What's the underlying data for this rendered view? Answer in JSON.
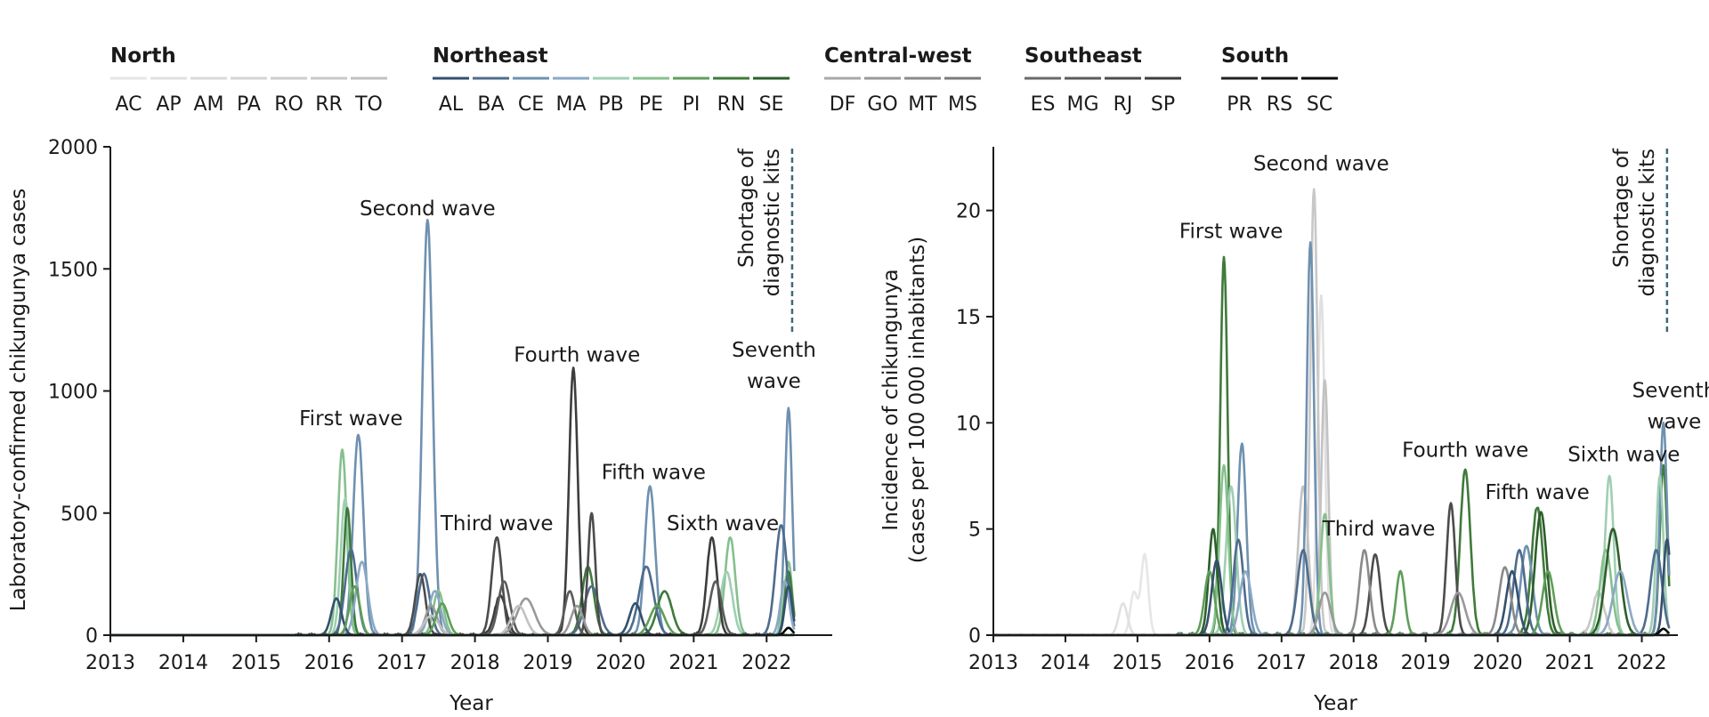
{
  "legend": {
    "regions": [
      {
        "name": "North",
        "states": [
          {
            "code": "AC",
            "color": "#e6e6e6"
          },
          {
            "code": "AP",
            "color": "#e0e0e0"
          },
          {
            "code": "AM",
            "color": "#dadada"
          },
          {
            "code": "PA",
            "color": "#d4d4d4"
          },
          {
            "code": "RO",
            "color": "#cecece"
          },
          {
            "code": "RR",
            "color": "#c8c8c8"
          },
          {
            "code": "TO",
            "color": "#c2c2c2"
          }
        ]
      },
      {
        "name": "Northeast",
        "states": [
          {
            "code": "AL",
            "color": "#34506e"
          },
          {
            "code": "BA",
            "color": "#4d6c8e"
          },
          {
            "code": "CE",
            "color": "#6f91b0"
          },
          {
            "code": "MA",
            "color": "#8aa9c4"
          },
          {
            "code": "PB",
            "color": "#9fcfb3"
          },
          {
            "code": "PE",
            "color": "#86c08e"
          },
          {
            "code": "PI",
            "color": "#5f9e5a"
          },
          {
            "code": "RN",
            "color": "#3f7a3a"
          },
          {
            "code": "SE",
            "color": "#2e5e2a"
          }
        ]
      },
      {
        "name": "Central-west",
        "states": [
          {
            "code": "DF",
            "color": "#a8a8a8"
          },
          {
            "code": "GO",
            "color": "#999999"
          },
          {
            "code": "MT",
            "color": "#8a8a8a"
          },
          {
            "code": "MS",
            "color": "#7b7b7b"
          }
        ]
      },
      {
        "name": "Southeast",
        "states": [
          {
            "code": "ES",
            "color": "#6a6a6a"
          },
          {
            "code": "MG",
            "color": "#5b5b5b"
          },
          {
            "code": "RJ",
            "color": "#4c4c4c"
          },
          {
            "code": "SP",
            "color": "#3d3d3d"
          }
        ]
      },
      {
        "name": "South",
        "states": [
          {
            "code": "PR",
            "color": "#222222"
          },
          {
            "code": "RS",
            "color": "#151515"
          },
          {
            "code": "SC",
            "color": "#080808"
          }
        ]
      }
    ]
  },
  "chart_data": [
    {
      "type": "line",
      "title": "",
      "xlabel": "Year",
      "ylabel": "Laboratory-confirmed chikungunya cases",
      "xlim": [
        2013,
        2022.9
      ],
      "ylim": [
        0,
        2000
      ],
      "x_ticks": [
        2013,
        2014,
        2015,
        2016,
        2017,
        2018,
        2019,
        2020,
        2021,
        2022
      ],
      "y_ticks": [
        0,
        500,
        1000,
        1500,
        2000
      ],
      "grid": false,
      "vline": {
        "x": 2022.35,
        "label": [
          "Shortage of",
          "diagnostic kits"
        ],
        "color": "#3e6a7a"
      },
      "annotations": [
        {
          "text": "First wave",
          "x": 2016.3,
          "y": 860
        },
        {
          "text": "Second wave",
          "x": 2017.35,
          "y": 1720
        },
        {
          "text": "Third wave",
          "x": 2018.3,
          "y": 430
        },
        {
          "text": "Fourth wave",
          "x": 2019.4,
          "y": 1120
        },
        {
          "text": "Fifth wave",
          "x": 2020.45,
          "y": 640
        },
        {
          "text": "Sixth wave",
          "x": 2021.4,
          "y": 430
        },
        {
          "text": [
            "Seventh",
            "wave"
          ],
          "x": 2022.1,
          "y": 1140
        }
      ],
      "series": [
        {
          "name": "CE",
          "color": "#6f91b0",
          "peaks": [
            [
              2016.4,
              820,
              0.07
            ],
            [
              2017.35,
              1700,
              0.07
            ],
            [
              2020.4,
              610,
              0.07
            ],
            [
              2022.3,
              930,
              0.05
            ]
          ]
        },
        {
          "name": "PE",
          "color": "#86c08e",
          "peaks": [
            [
              2016.18,
              760,
              0.06
            ],
            [
              2017.5,
              180,
              0.07
            ],
            [
              2021.5,
              400,
              0.07
            ],
            [
              2022.3,
              300,
              0.05
            ]
          ]
        },
        {
          "name": "PB",
          "color": "#9fcfb3",
          "peaks": [
            [
              2016.22,
              560,
              0.06
            ],
            [
              2021.45,
              260,
              0.08
            ],
            [
              2022.28,
              250,
              0.05
            ]
          ]
        },
        {
          "name": "RN",
          "color": "#3f7a3a",
          "peaks": [
            [
              2016.25,
              520,
              0.05
            ],
            [
              2019.55,
              280,
              0.08
            ],
            [
              2020.6,
              180,
              0.1
            ],
            [
              2022.3,
              260,
              0.05
            ]
          ]
        },
        {
          "name": "BA",
          "color": "#4d6c8e",
          "peaks": [
            [
              2016.3,
              350,
              0.08
            ],
            [
              2017.3,
              250,
              0.08
            ],
            [
              2019.6,
              200,
              0.1
            ],
            [
              2020.35,
              280,
              0.1
            ],
            [
              2022.2,
              450,
              0.08
            ]
          ]
        },
        {
          "name": "MA",
          "color": "#8aa9c4",
          "peaks": [
            [
              2016.45,
              300,
              0.08
            ],
            [
              2017.45,
              180,
              0.08
            ],
            [
              2022.25,
              220,
              0.06
            ]
          ]
        },
        {
          "name": "SP",
          "color": "#3d3d3d",
          "peaks": [
            [
              2019.35,
              1090,
              0.06
            ],
            [
              2021.25,
              400,
              0.07
            ],
            [
              2018.35,
              160,
              0.08
            ]
          ]
        },
        {
          "name": "RJ",
          "color": "#4c4c4c",
          "peaks": [
            [
              2018.3,
              400,
              0.07
            ],
            [
              2019.6,
              500,
              0.05
            ],
            [
              2017.25,
              250,
              0.07
            ]
          ]
        },
        {
          "name": "MG",
          "color": "#5b5b5b",
          "peaks": [
            [
              2018.4,
              220,
              0.08
            ],
            [
              2019.3,
              180,
              0.07
            ],
            [
              2021.3,
              220,
              0.08
            ]
          ]
        },
        {
          "name": "GO",
          "color": "#999999",
          "peaks": [
            [
              2017.4,
              120,
              0.08
            ],
            [
              2018.7,
              150,
              0.12
            ],
            [
              2019.4,
              120,
              0.08
            ]
          ]
        },
        {
          "name": "TO",
          "color": "#c2c2c2",
          "peaks": [
            [
              2017.4,
              80,
              0.1
            ],
            [
              2018.6,
              120,
              0.1
            ]
          ]
        },
        {
          "name": "AL",
          "color": "#34506e",
          "peaks": [
            [
              2016.1,
              150,
              0.07
            ],
            [
              2020.2,
              130,
              0.08
            ],
            [
              2022.3,
              200,
              0.05
            ]
          ]
        },
        {
          "name": "PI",
          "color": "#5f9e5a",
          "peaks": [
            [
              2016.35,
              200,
              0.07
            ],
            [
              2017.55,
              130,
              0.08
            ],
            [
              2020.5,
              120,
              0.1
            ]
          ]
        },
        {
          "name": "SC",
          "color": "#080808",
          "peaks": [
            [
              2022.3,
              30,
              0.05
            ]
          ]
        }
      ]
    },
    {
      "type": "line",
      "title": "",
      "xlabel": "Year",
      "ylabel": [
        "Incidence of chikungunya",
        "(cases per 100 000 inhabitants)"
      ],
      "xlim": [
        2013,
        2022.5
      ],
      "ylim": [
        0,
        23
      ],
      "x_ticks": [
        2013,
        2014,
        2015,
        2016,
        2017,
        2018,
        2019,
        2020,
        2021,
        2022
      ],
      "y_ticks": [
        0,
        5,
        10,
        15,
        20
      ],
      "grid": false,
      "vline": {
        "x": 2022.35,
        "label": [
          "Shortage of",
          "diagnostic kits"
        ],
        "color": "#3e6a7a"
      },
      "annotations": [
        {
          "text": "First wave",
          "x": 2016.3,
          "y": 18.7
        },
        {
          "text": "Second wave",
          "x": 2017.55,
          "y": 21.9
        },
        {
          "text": "Third wave",
          "x": 2018.35,
          "y": 4.7
        },
        {
          "text": "Fourth wave",
          "x": 2019.55,
          "y": 8.4
        },
        {
          "text": "Fifth wave",
          "x": 2020.55,
          "y": 6.4
        },
        {
          "text": "Sixth wave",
          "x": 2021.75,
          "y": 8.2
        },
        {
          "text": [
            "Seventh",
            "wave"
          ],
          "x": 2022.45,
          "y": 11.2
        }
      ],
      "series": [
        {
          "name": "AC",
          "color": "#e6e6e6",
          "peaks": [
            [
              2015.1,
              3.8,
              0.05
            ],
            [
              2014.95,
              2.0,
              0.05
            ]
          ]
        },
        {
          "name": "AP",
          "color": "#e0e0e0",
          "peaks": [
            [
              2014.8,
              1.5,
              0.06
            ],
            [
              2017.55,
              16,
              0.05
            ]
          ]
        },
        {
          "name": "RR",
          "color": "#c8c8c8",
          "peaks": [
            [
              2017.45,
              21,
              0.05
            ],
            [
              2021.4,
              2.0,
              0.08
            ]
          ]
        },
        {
          "name": "TO",
          "color": "#c2c2c2",
          "peaks": [
            [
              2017.3,
              7,
              0.07
            ],
            [
              2017.6,
              12,
              0.05
            ]
          ]
        },
        {
          "name": "RN",
          "color": "#3f7a3a",
          "peaks": [
            [
              2016.2,
              17.8,
              0.05
            ],
            [
              2019.55,
              7.8,
              0.07
            ],
            [
              2020.55,
              6.0,
              0.08
            ],
            [
              2022.3,
              8.0,
              0.05
            ]
          ]
        },
        {
          "name": "CE",
          "color": "#6f91b0",
          "peaks": [
            [
              2016.45,
              9.0,
              0.06
            ],
            [
              2017.4,
              18.5,
              0.05
            ],
            [
              2020.4,
              4.2,
              0.08
            ],
            [
              2022.3,
              10,
              0.05
            ]
          ]
        },
        {
          "name": "PB",
          "color": "#9fcfb3",
          "peaks": [
            [
              2016.3,
              7.0,
              0.07
            ],
            [
              2021.55,
              7.5,
              0.06
            ],
            [
              2022.25,
              7.5,
              0.05
            ]
          ]
        },
        {
          "name": "PE",
          "color": "#86c08e",
          "peaks": [
            [
              2016.2,
              8.0,
              0.06
            ],
            [
              2017.6,
              5.7,
              0.06
            ],
            [
              2021.5,
              4.0,
              0.08
            ]
          ]
        },
        {
          "name": "SE",
          "color": "#2e5e2a",
          "peaks": [
            [
              2016.05,
              5.0,
              0.06
            ],
            [
              2020.6,
              5.8,
              0.08
            ],
            [
              2021.6,
              5.0,
              0.1
            ]
          ]
        },
        {
          "name": "BA",
          "color": "#4d6c8e",
          "peaks": [
            [
              2016.4,
              4.5,
              0.07
            ],
            [
              2017.3,
              4.0,
              0.08
            ],
            [
              2020.3,
              4.0,
              0.08
            ],
            [
              2022.2,
              4.0,
              0.08
            ]
          ]
        },
        {
          "name": "RJ",
          "color": "#4c4c4c",
          "peaks": [
            [
              2018.3,
              3.8,
              0.07
            ],
            [
              2019.35,
              6.2,
              0.06
            ]
          ]
        },
        {
          "name": "MT",
          "color": "#8a8a8a",
          "peaks": [
            [
              2018.15,
              4.0,
              0.07
            ],
            [
              2020.1,
              3.2,
              0.08
            ]
          ]
        },
        {
          "name": "PI",
          "color": "#5f9e5a",
          "peaks": [
            [
              2016.0,
              3.0,
              0.07
            ],
            [
              2018.65,
              3.0,
              0.06
            ],
            [
              2020.7,
              3.0,
              0.08
            ]
          ]
        },
        {
          "name": "AL",
          "color": "#34506e",
          "peaks": [
            [
              2016.1,
              3.5,
              0.07
            ],
            [
              2020.2,
              3.0,
              0.08
            ],
            [
              2022.35,
              4.5,
              0.05
            ]
          ]
        },
        {
          "name": "MA",
          "color": "#8aa9c4",
          "peaks": [
            [
              2016.5,
              3.0,
              0.08
            ],
            [
              2021.7,
              3.0,
              0.1
            ]
          ]
        },
        {
          "name": "GO",
          "color": "#999999",
          "peaks": [
            [
              2017.6,
              2.0,
              0.08
            ],
            [
              2019.45,
              2.0,
              0.1
            ]
          ]
        },
        {
          "name": "SC",
          "color": "#080808",
          "peaks": [
            [
              2022.3,
              0.3,
              0.05
            ]
          ]
        }
      ]
    }
  ]
}
